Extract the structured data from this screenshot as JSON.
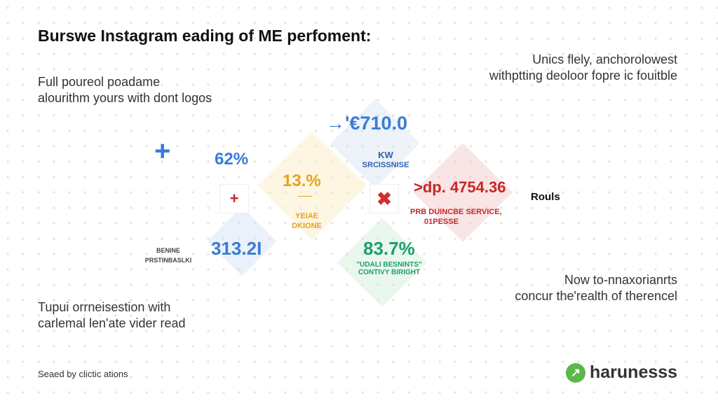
{
  "title": "Burswe Instagram eading of ME perfoment:",
  "top_left": [
    "Full poureol poadame",
    "alourithm yours with dont logos"
  ],
  "top_right": [
    "Unics flely, anchorolowest",
    "withptting deoloor fopre ic fouitble"
  ],
  "bottom_left": [
    "Tupui orrneisestion with",
    "carlemal len'ate vider read"
  ],
  "bottom_right": [
    "Now to-nnaxorianrts",
    "concur the'realth of therencel"
  ],
  "footer": "Seaed by clictic ations",
  "brand": {
    "name": "harunesss",
    "color": "#5bb84a"
  },
  "stats": {
    "top_value": "'€710.0",
    "kw": "KW",
    "kw_sub": "SRCISSNISE",
    "blue_pct": "62%",
    "yellow_pct": "13.%",
    "yellow_sub": [
      "YEIAE",
      "DKIONE"
    ],
    "red_value": ">dp. 4754.36",
    "red_sub": [
      "PRB DUINCBE SERVICE,",
      "01PESSE"
    ],
    "rouls": "Rouls",
    "blue_value": "313.2I",
    "left_small": [
      "BENINE",
      "PRSTINBASLKI"
    ],
    "green_pct": "83.7%",
    "green_sub": [
      "\"UDALI BESNINTS\"",
      "CONTIVY BIRIGHT"
    ]
  },
  "colors": {
    "blue": "#3a7bd5",
    "yellow": "#e8a21a",
    "red": "#c62828",
    "green": "#1f9e6e"
  }
}
